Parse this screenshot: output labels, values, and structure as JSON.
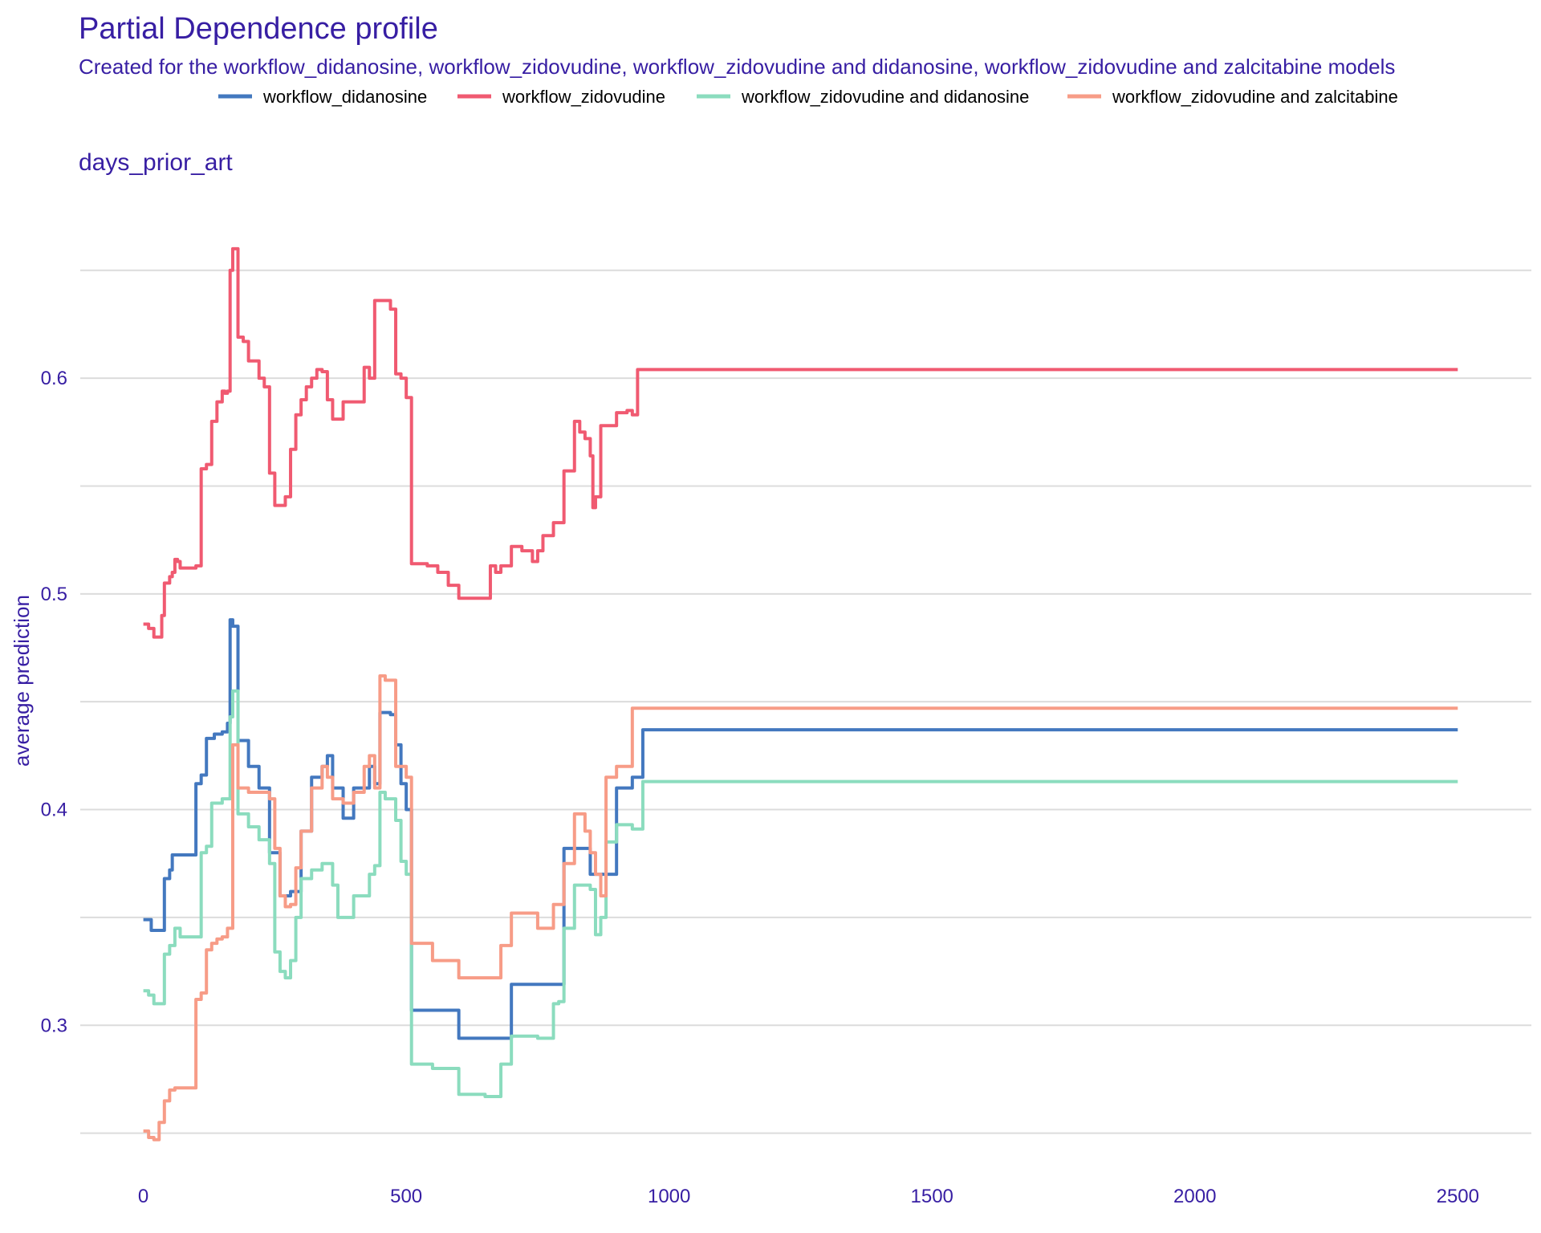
{
  "chart_data": {
    "type": "line",
    "title": "Partial Dependence profile",
    "subtitle": "Created for the workflow_didanosine, workflow_zidovudine, workflow_zidovudine and didanosine, workflow_zidovudine and zalcitabine models",
    "facet_label": "days_prior_art",
    "xlabel": "",
    "ylabel": "average prediction",
    "xlim": [
      -120,
      2640
    ],
    "ylim": [
      0.232,
      0.686
    ],
    "x_ticks": [
      0,
      500,
      1000,
      1500,
      2000,
      2500
    ],
    "x_tick_labels": [
      "0",
      "500",
      "1000",
      "1500",
      "2000",
      "2500"
    ],
    "y_ticks": [
      0.3,
      0.4,
      0.5,
      0.6
    ],
    "y_tick_labels": [
      "0.3",
      "0.4",
      "0.5",
      "0.6"
    ],
    "y_minor_gridlines": [
      0.25,
      0.35,
      0.45,
      0.55,
      0.65
    ],
    "grid": true,
    "legend_position": "top",
    "series": [
      {
        "name": "workflow_didanosine",
        "color": "#4378bf",
        "x": [
          0,
          15,
          20,
          40,
          50,
          55,
          70,
          80,
          90,
          100,
          110,
          120,
          135,
          150,
          160,
          165,
          170,
          180,
          200,
          220,
          240,
          260,
          275,
          280,
          300,
          320,
          340,
          350,
          360,
          380,
          400,
          420,
          430,
          440,
          450,
          470,
          480,
          490,
          500,
          510,
          600,
          700,
          800,
          850,
          900,
          930,
          950,
          1000,
          2500
        ],
        "values": [
          0.349,
          0.344,
          0.344,
          0.368,
          0.372,
          0.379,
          0.379,
          0.379,
          0.379,
          0.412,
          0.416,
          0.433,
          0.435,
          0.436,
          0.44,
          0.488,
          0.485,
          0.432,
          0.42,
          0.41,
          0.38,
          0.36,
          0.36,
          0.362,
          0.39,
          0.415,
          0.42,
          0.425,
          0.41,
          0.396,
          0.41,
          0.41,
          0.42,
          0.412,
          0.445,
          0.444,
          0.43,
          0.412,
          0.4,
          0.307,
          0.294,
          0.319,
          0.382,
          0.37,
          0.41,
          0.415,
          0.437,
          0.437,
          0.437
        ]
      },
      {
        "name": "workflow_zidovudine",
        "color": "#f05a71",
        "x": [
          0,
          10,
          20,
          30,
          35,
          40,
          50,
          55,
          60,
          65,
          70,
          80,
          90,
          100,
          110,
          120,
          130,
          140,
          150,
          155,
          160,
          165,
          170,
          180,
          190,
          200,
          220,
          230,
          240,
          250,
          260,
          270,
          280,
          290,
          300,
          310,
          320,
          330,
          340,
          350,
          360,
          370,
          380,
          400,
          420,
          430,
          440,
          450,
          460,
          470,
          480,
          490,
          500,
          510,
          520,
          540,
          560,
          580,
          600,
          650,
          660,
          670,
          680,
          700,
          720,
          740,
          750,
          760,
          780,
          800,
          820,
          830,
          840,
          850,
          855,
          860,
          870,
          880,
          900,
          920,
          930,
          940,
          950,
          1000,
          2500
        ],
        "values": [
          0.486,
          0.484,
          0.48,
          0.48,
          0.49,
          0.505,
          0.508,
          0.51,
          0.516,
          0.515,
          0.512,
          0.512,
          0.512,
          0.513,
          0.558,
          0.56,
          0.58,
          0.589,
          0.594,
          0.593,
          0.594,
          0.65,
          0.66,
          0.619,
          0.617,
          0.608,
          0.6,
          0.596,
          0.556,
          0.541,
          0.541,
          0.545,
          0.567,
          0.583,
          0.59,
          0.596,
          0.6,
          0.604,
          0.603,
          0.59,
          0.581,
          0.581,
          0.589,
          0.589,
          0.605,
          0.6,
          0.636,
          0.636,
          0.636,
          0.632,
          0.602,
          0.6,
          0.591,
          0.514,
          0.514,
          0.513,
          0.51,
          0.504,
          0.498,
          0.498,
          0.513,
          0.51,
          0.513,
          0.522,
          0.52,
          0.515,
          0.52,
          0.527,
          0.533,
          0.557,
          0.58,
          0.575,
          0.572,
          0.564,
          0.54,
          0.545,
          0.578,
          0.578,
          0.584,
          0.585,
          0.583,
          0.604,
          0.604,
          0.604,
          0.604
        ]
      },
      {
        "name": "workflow_zidovudine and didanosine",
        "color": "#8bdcbe",
        "x": [
          0,
          10,
          20,
          30,
          40,
          50,
          60,
          70,
          100,
          110,
          120,
          130,
          150,
          160,
          165,
          170,
          180,
          200,
          220,
          240,
          250,
          260,
          270,
          280,
          290,
          300,
          320,
          340,
          360,
          370,
          380,
          400,
          420,
          430,
          440,
          450,
          460,
          470,
          480,
          490,
          500,
          510,
          550,
          600,
          650,
          680,
          700,
          750,
          780,
          790,
          800,
          820,
          840,
          850,
          860,
          870,
          880,
          900,
          920,
          930,
          950,
          1000,
          2500
        ],
        "values": [
          0.316,
          0.314,
          0.31,
          0.31,
          0.333,
          0.337,
          0.345,
          0.341,
          0.341,
          0.38,
          0.383,
          0.403,
          0.405,
          0.405,
          0.443,
          0.455,
          0.398,
          0.392,
          0.386,
          0.375,
          0.334,
          0.325,
          0.322,
          0.33,
          0.35,
          0.368,
          0.372,
          0.375,
          0.365,
          0.35,
          0.35,
          0.36,
          0.36,
          0.37,
          0.374,
          0.408,
          0.405,
          0.405,
          0.395,
          0.376,
          0.37,
          0.282,
          0.28,
          0.268,
          0.267,
          0.282,
          0.295,
          0.294,
          0.31,
          0.311,
          0.345,
          0.365,
          0.365,
          0.363,
          0.342,
          0.35,
          0.385,
          0.393,
          0.393,
          0.391,
          0.413,
          0.413,
          0.413
        ]
      },
      {
        "name": "workflow_zidovudine and zalcitabine",
        "color": "#f79c87",
        "x": [
          0,
          10,
          20,
          30,
          40,
          50,
          60,
          70,
          80,
          90,
          100,
          110,
          120,
          130,
          140,
          150,
          160,
          170,
          180,
          200,
          220,
          240,
          250,
          260,
          270,
          280,
          290,
          300,
          320,
          340,
          350,
          360,
          380,
          400,
          420,
          430,
          440,
          450,
          460,
          470,
          480,
          490,
          500,
          510,
          550,
          600,
          650,
          680,
          700,
          720,
          750,
          780,
          800,
          820,
          840,
          850,
          860,
          870,
          880,
          900,
          920,
          930,
          950,
          1000,
          2500
        ],
        "values": [
          0.251,
          0.248,
          0.247,
          0.255,
          0.265,
          0.27,
          0.271,
          0.271,
          0.271,
          0.271,
          0.312,
          0.315,
          0.335,
          0.338,
          0.34,
          0.341,
          0.345,
          0.43,
          0.41,
          0.408,
          0.408,
          0.405,
          0.382,
          0.36,
          0.355,
          0.356,
          0.373,
          0.39,
          0.41,
          0.42,
          0.415,
          0.405,
          0.403,
          0.408,
          0.42,
          0.425,
          0.41,
          0.462,
          0.46,
          0.46,
          0.42,
          0.42,
          0.415,
          0.338,
          0.33,
          0.322,
          0.322,
          0.337,
          0.352,
          0.352,
          0.345,
          0.356,
          0.375,
          0.398,
          0.39,
          0.38,
          0.37,
          0.36,
          0.415,
          0.42,
          0.42,
          0.447,
          0.447,
          0.447,
          0.447
        ]
      }
    ]
  }
}
